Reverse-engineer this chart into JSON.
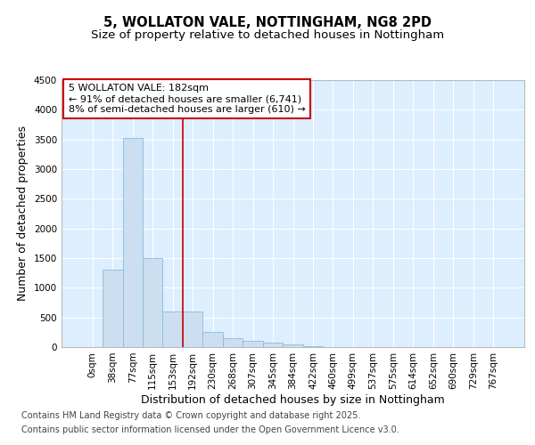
{
  "title_line1": "5, WOLLATON VALE, NOTTINGHAM, NG8 2PD",
  "title_line2": "Size of property relative to detached houses in Nottingham",
  "xlabel": "Distribution of detached houses by size in Nottingham",
  "ylabel": "Number of detached properties",
  "bar_color": "#ccdff0",
  "bar_edge_color": "#88bbdd",
  "background_color": "#ddeeff",
  "grid_color": "#ffffff",
  "categories": [
    "0sqm",
    "38sqm",
    "77sqm",
    "115sqm",
    "153sqm",
    "192sqm",
    "230sqm",
    "268sqm",
    "307sqm",
    "345sqm",
    "384sqm",
    "422sqm",
    "460sqm",
    "499sqm",
    "537sqm",
    "575sqm",
    "614sqm",
    "652sqm",
    "690sqm",
    "729sqm",
    "767sqm"
  ],
  "values": [
    0,
    1300,
    3520,
    1500,
    600,
    600,
    250,
    150,
    100,
    75,
    50,
    15,
    5,
    3,
    1,
    0,
    0,
    0,
    0,
    0,
    0
  ],
  "ylim": [
    0,
    4500
  ],
  "yticks": [
    0,
    500,
    1000,
    1500,
    2000,
    2500,
    3000,
    3500,
    4000,
    4500
  ],
  "marker_label": "5 WOLLATON VALE: 182sqm",
  "annotation_line1": "← 91% of detached houses are smaller (6,741)",
  "annotation_line2": "8% of semi-detached houses are larger (610) →",
  "annotation_box_color": "#cc0000",
  "vline_x_index": 5,
  "vline_color": "#cc0000",
  "footer_line1": "Contains HM Land Registry data © Crown copyright and database right 2025.",
  "footer_line2": "Contains public sector information licensed under the Open Government Licence v3.0.",
  "title_fontsize": 10.5,
  "subtitle_fontsize": 9.5,
  "tick_fontsize": 7.5,
  "label_fontsize": 9,
  "annotation_fontsize": 8,
  "footer_fontsize": 7
}
